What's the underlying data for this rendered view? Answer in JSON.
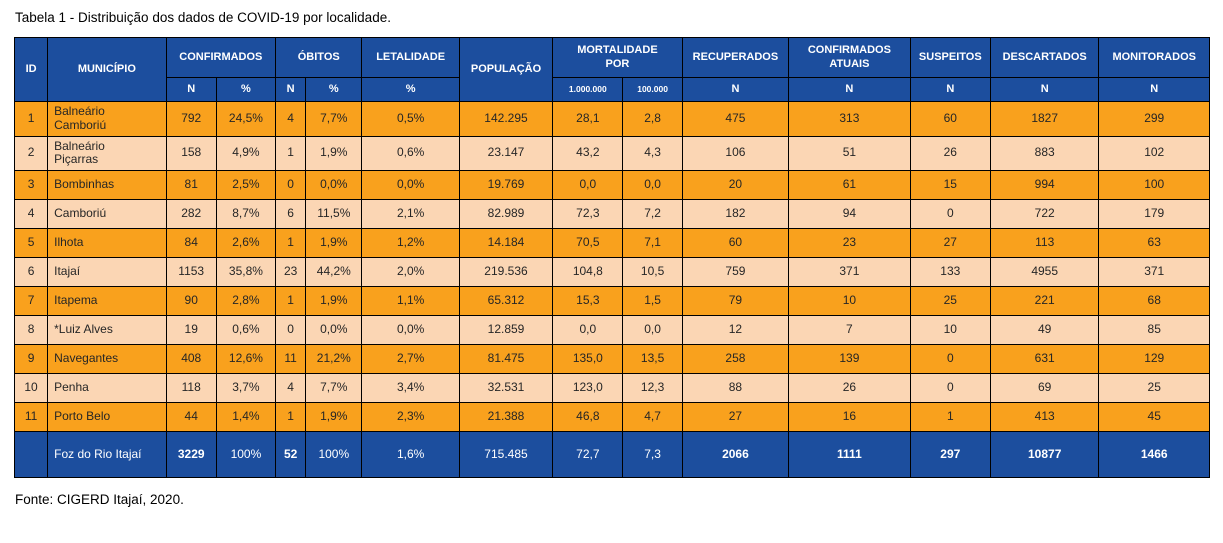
{
  "title": "Tabela 1 - Distribuição dos dados de COVID-19 por localidade.",
  "source": "Fonte: CIGERD Itajaí, 2020.",
  "colors": {
    "header_blue": "#1C4E9E",
    "row_orange": "#F9A11D",
    "row_peach": "#FBD6B4",
    "border": "#000000",
    "header_text": "#FFFFFF",
    "cell_text": "#262626"
  },
  "table": {
    "header": {
      "id": "ID",
      "municipio": "MUNICÍPIO",
      "confirmados": "CONFIRMADOS",
      "obitos": "ÓBITOS",
      "letalidade": "LETALIDADE",
      "populacao": "POPULAÇÃO",
      "mortalidade_por": "MORTALIDADE POR",
      "recuperados": "RECUPERADOS",
      "confirmados_atuais": "CONFIRMADOS ATUAIS",
      "suspeitos": "SUSPEITOS",
      "descartados": "DESCARTADOS",
      "monitorados": "MONITORADOS",
      "sub": {
        "n": "N",
        "pct": "%",
        "per_million": "1.000.000",
        "per_hundred_k": "100.000"
      }
    },
    "rows": [
      {
        "id": "1",
        "municipio": "Balneário Camboriú",
        "conf_n": "792",
        "conf_pct": "24,5%",
        "obitos_n": "4",
        "obitos_pct": "7,7%",
        "letalidade": "0,5%",
        "populacao": "142.295",
        "mort_1000000": "28,1",
        "mort_100000": "2,8",
        "recuperados": "475",
        "confirmados_atuais": "313",
        "suspeitos": "60",
        "descartados": "1827",
        "monitorados": "299"
      },
      {
        "id": "2",
        "municipio": "Balneário Piçarras",
        "conf_n": "158",
        "conf_pct": "4,9%",
        "obitos_n": "1",
        "obitos_pct": "1,9%",
        "letalidade": "0,6%",
        "populacao": "23.147",
        "mort_1000000": "43,2",
        "mort_100000": "4,3",
        "recuperados": "106",
        "confirmados_atuais": "51",
        "suspeitos": "26",
        "descartados": "883",
        "monitorados": "102"
      },
      {
        "id": "3",
        "municipio": "Bombinhas",
        "conf_n": "81",
        "conf_pct": "2,5%",
        "obitos_n": "0",
        "obitos_pct": "0,0%",
        "letalidade": "0,0%",
        "populacao": "19.769",
        "mort_1000000": "0,0",
        "mort_100000": "0,0",
        "recuperados": "20",
        "confirmados_atuais": "61",
        "suspeitos": "15",
        "descartados": "994",
        "monitorados": "100"
      },
      {
        "id": "4",
        "municipio": "Camboriú",
        "conf_n": "282",
        "conf_pct": "8,7%",
        "obitos_n": "6",
        "obitos_pct": "11,5%",
        "letalidade": "2,1%",
        "populacao": "82.989",
        "mort_1000000": "72,3",
        "mort_100000": "7,2",
        "recuperados": "182",
        "confirmados_atuais": "94",
        "suspeitos": "0",
        "descartados": "722",
        "monitorados": "179"
      },
      {
        "id": "5",
        "municipio": "Ilhota",
        "conf_n": "84",
        "conf_pct": "2,6%",
        "obitos_n": "1",
        "obitos_pct": "1,9%",
        "letalidade": "1,2%",
        "populacao": "14.184",
        "mort_1000000": "70,5",
        "mort_100000": "7,1",
        "recuperados": "60",
        "confirmados_atuais": "23",
        "suspeitos": "27",
        "descartados": "113",
        "monitorados": "63"
      },
      {
        "id": "6",
        "municipio": "Itajaí",
        "conf_n": "1153",
        "conf_pct": "35,8%",
        "obitos_n": "23",
        "obitos_pct": "44,2%",
        "letalidade": "2,0%",
        "populacao": "219.536",
        "mort_1000000": "104,8",
        "mort_100000": "10,5",
        "recuperados": "759",
        "confirmados_atuais": "371",
        "suspeitos": "133",
        "descartados": "4955",
        "monitorados": "371"
      },
      {
        "id": "7",
        "municipio": "Itapema",
        "conf_n": "90",
        "conf_pct": "2,8%",
        "obitos_n": "1",
        "obitos_pct": "1,9%",
        "letalidade": "1,1%",
        "populacao": "65.312",
        "mort_1000000": "15,3",
        "mort_100000": "1,5",
        "recuperados": "79",
        "confirmados_atuais": "10",
        "suspeitos": "25",
        "descartados": "221",
        "monitorados": "68"
      },
      {
        "id": "8",
        "municipio": "*Luiz Alves",
        "conf_n": "19",
        "conf_pct": "0,6%",
        "obitos_n": "0",
        "obitos_pct": "0,0%",
        "letalidade": "0,0%",
        "populacao": "12.859",
        "mort_1000000": "0,0",
        "mort_100000": "0,0",
        "recuperados": "12",
        "confirmados_atuais": "7",
        "suspeitos": "10",
        "descartados": "49",
        "monitorados": "85"
      },
      {
        "id": "9",
        "municipio": "Navegantes",
        "conf_n": "408",
        "conf_pct": "12,6%",
        "obitos_n": "11",
        "obitos_pct": "21,2%",
        "letalidade": "2,7%",
        "populacao": "81.475",
        "mort_1000000": "135,0",
        "mort_100000": "13,5",
        "recuperados": "258",
        "confirmados_atuais": "139",
        "suspeitos": "0",
        "descartados": "631",
        "monitorados": "129"
      },
      {
        "id": "10",
        "municipio": "Penha",
        "conf_n": "118",
        "conf_pct": "3,7%",
        "obitos_n": "4",
        "obitos_pct": "7,7%",
        "letalidade": "3,4%",
        "populacao": "32.531",
        "mort_1000000": "123,0",
        "mort_100000": "12,3",
        "recuperados": "88",
        "confirmados_atuais": "26",
        "suspeitos": "0",
        "descartados": "69",
        "monitorados": "25"
      },
      {
        "id": "11",
        "municipio": "Porto Belo",
        "conf_n": "44",
        "conf_pct": "1,4%",
        "obitos_n": "1",
        "obitos_pct": "1,9%",
        "letalidade": "2,3%",
        "populacao": "21.388",
        "mort_1000000": "46,8",
        "mort_100000": "4,7",
        "recuperados": "27",
        "confirmados_atuais": "16",
        "suspeitos": "1",
        "descartados": "413",
        "monitorados": "45"
      }
    ],
    "total": {
      "id": "",
      "municipio": "Foz do Rio Itajaí",
      "conf_n": "3229",
      "conf_pct": "100%",
      "obitos_n": "52",
      "obitos_pct": "100%",
      "letalidade": "1,6%",
      "populacao": "715.485",
      "mort_1000000": "72,7",
      "mort_100000": "7,3",
      "recuperados": "2066",
      "confirmados_atuais": "1111",
      "suspeitos": "297",
      "descartados": "10877",
      "monitorados": "1466"
    }
  }
}
